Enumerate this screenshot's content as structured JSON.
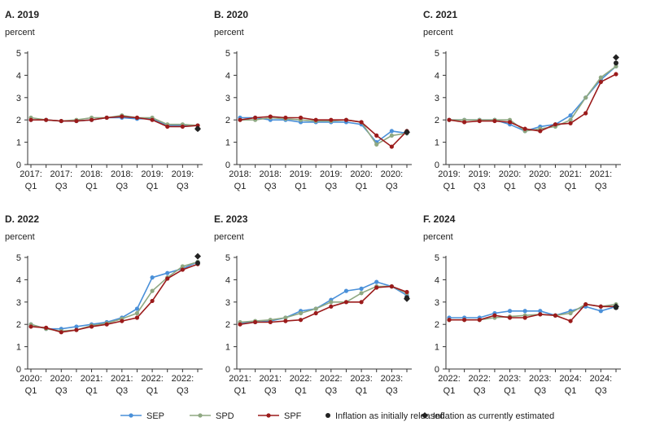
{
  "chart_data": [
    {
      "type": "line",
      "title": "A. 2019",
      "ylabel": "percent",
      "ylim": [
        0,
        5
      ],
      "yticks": [
        "0",
        "1",
        "2",
        "3",
        "4",
        "5"
      ],
      "xtick_labels": [
        [
          "2017:",
          "Q1"
        ],
        [
          "2017:",
          "Q3"
        ],
        [
          "2018:",
          "Q1"
        ],
        [
          "2018:",
          "Q3"
        ],
        [
          "2019:",
          "Q1"
        ],
        [
          "2019:",
          "Q3"
        ]
      ],
      "x_count": 12,
      "series": [
        {
          "name": "SEP",
          "values": [
            2.0,
            2.0,
            1.95,
            1.95,
            2.0,
            2.1,
            2.1,
            2.05,
            2.05,
            1.75,
            1.75,
            1.75
          ]
        },
        {
          "name": "SPD",
          "values": [
            2.1,
            2.0,
            1.95,
            2.0,
            2.1,
            2.1,
            2.2,
            2.1,
            2.1,
            1.8,
            1.8,
            1.75
          ]
        },
        {
          "name": "SPF",
          "values": [
            2.0,
            2.0,
            1.95,
            1.95,
            2.0,
            2.1,
            2.15,
            2.1,
            2.0,
            1.7,
            1.7,
            1.75
          ]
        }
      ],
      "initially_released": 1.6,
      "currently_estimated": 1.6
    },
    {
      "type": "line",
      "title": "B. 2020",
      "ylabel": "percent",
      "ylim": [
        0,
        5
      ],
      "yticks": [
        "0",
        "1",
        "2",
        "3",
        "4",
        "5"
      ],
      "xtick_labels": [
        [
          "2018:",
          "Q1"
        ],
        [
          "2018:",
          "Q3"
        ],
        [
          "2019:",
          "Q1"
        ],
        [
          "2019:",
          "Q3"
        ],
        [
          "2020:",
          "Q1"
        ],
        [
          "2020:",
          "Q3"
        ]
      ],
      "x_count": 12,
      "series": [
        {
          "name": "SEP",
          "values": [
            2.1,
            2.1,
            2.0,
            2.0,
            1.9,
            1.9,
            1.9,
            1.9,
            1.8,
            1.0,
            1.5,
            1.4
          ]
        },
        {
          "name": "SPD",
          "values": [
            2.0,
            2.0,
            2.1,
            2.05,
            2.0,
            1.95,
            1.95,
            2.0,
            1.9,
            0.9,
            1.3,
            1.4
          ]
        },
        {
          "name": "SPF",
          "values": [
            2.0,
            2.1,
            2.15,
            2.1,
            2.1,
            2.0,
            2.0,
            2.0,
            1.9,
            1.3,
            0.8,
            1.5
          ]
        }
      ],
      "initially_released": 1.45,
      "currently_estimated": 1.45
    },
    {
      "type": "line",
      "title": "C. 2021",
      "ylabel": "percent",
      "ylim": [
        0,
        5
      ],
      "yticks": [
        "0",
        "1",
        "2",
        "3",
        "4",
        "5"
      ],
      "xtick_labels": [
        [
          "2019:",
          "Q1"
        ],
        [
          "2019:",
          "Q3"
        ],
        [
          "2020:",
          "Q1"
        ],
        [
          "2020:",
          "Q3"
        ],
        [
          "2021:",
          "Q1"
        ],
        [
          "2021:",
          "Q3"
        ]
      ],
      "x_count": 12,
      "series": [
        {
          "name": "SEP",
          "values": [
            2.0,
            2.0,
            2.0,
            2.0,
            1.8,
            1.5,
            1.7,
            1.8,
            2.2,
            3.0,
            3.8,
            4.4
          ]
        },
        {
          "name": "SPD",
          "values": [
            2.0,
            2.0,
            2.0,
            2.0,
            2.0,
            1.5,
            1.6,
            1.7,
            2.0,
            3.0,
            3.9,
            4.4
          ]
        },
        {
          "name": "SPF",
          "values": [
            2.0,
            1.9,
            1.95,
            1.95,
            1.9,
            1.6,
            1.5,
            1.8,
            1.85,
            2.3,
            3.7,
            4.05
          ]
        }
      ],
      "initially_released": 4.55,
      "currently_estimated": 4.8
    },
    {
      "type": "line",
      "title": "D. 2022",
      "ylabel": "percent",
      "ylim": [
        0,
        5
      ],
      "yticks": [
        "0",
        "1",
        "2",
        "3",
        "4",
        "5"
      ],
      "xtick_labels": [
        [
          "2020:",
          "Q1"
        ],
        [
          "2020:",
          "Q3"
        ],
        [
          "2021:",
          "Q1"
        ],
        [
          "2021:",
          "Q3"
        ],
        [
          "2022:",
          "Q1"
        ],
        [
          "2022:",
          "Q3"
        ]
      ],
      "x_count": 12,
      "series": [
        {
          "name": "SEP",
          "values": [
            2.0,
            1.8,
            1.8,
            1.9,
            2.0,
            2.1,
            2.3,
            2.7,
            4.1,
            4.3,
            4.5,
            4.8
          ]
        },
        {
          "name": "SPD",
          "values": [
            2.0,
            1.8,
            1.7,
            1.75,
            1.95,
            2.05,
            2.25,
            2.5,
            3.5,
            4.1,
            4.6,
            4.8
          ]
        },
        {
          "name": "SPF",
          "values": [
            1.9,
            1.85,
            1.65,
            1.75,
            1.9,
            2.0,
            2.15,
            2.3,
            3.05,
            4.05,
            4.45,
            4.7
          ]
        }
      ],
      "initially_released": 4.75,
      "currently_estimated": 5.05
    },
    {
      "type": "line",
      "title": "E. 2023",
      "ylabel": "percent",
      "ylim": [
        0,
        5
      ],
      "yticks": [
        "0",
        "1",
        "2",
        "3",
        "4",
        "5"
      ],
      "xtick_labels": [
        [
          "2021:",
          "Q1"
        ],
        [
          "2021:",
          "Q3"
        ],
        [
          "2022:",
          "Q1"
        ],
        [
          "2022:",
          "Q3"
        ],
        [
          "2023:",
          "Q1"
        ],
        [
          "2023:",
          "Q3"
        ]
      ],
      "x_count": 12,
      "series": [
        {
          "name": "SEP",
          "values": [
            2.05,
            2.1,
            2.15,
            2.3,
            2.6,
            2.7,
            3.1,
            3.5,
            3.6,
            3.9,
            3.7,
            3.3
          ]
        },
        {
          "name": "SPD",
          "values": [
            2.1,
            2.15,
            2.2,
            2.3,
            2.5,
            2.7,
            3.0,
            3.0,
            3.4,
            3.7,
            3.7,
            3.4
          ]
        },
        {
          "name": "SPF",
          "values": [
            2.0,
            2.1,
            2.1,
            2.15,
            2.2,
            2.5,
            2.8,
            3.0,
            3.0,
            3.65,
            3.7,
            3.45
          ]
        }
      ],
      "initially_released": 3.2,
      "currently_estimated": 3.15
    },
    {
      "type": "line",
      "title": "F. 2024",
      "ylabel": "percent",
      "ylim": [
        0,
        5
      ],
      "yticks": [
        "0",
        "1",
        "2",
        "3",
        "4",
        "5"
      ],
      "xtick_labels": [
        [
          "2022:",
          "Q1"
        ],
        [
          "2022:",
          "Q3"
        ],
        [
          "2023:",
          "Q1"
        ],
        [
          "2023:",
          "Q3"
        ],
        [
          "2024:",
          "Q1"
        ],
        [
          "2024:",
          "Q3"
        ]
      ],
      "x_count": 12,
      "series": [
        {
          "name": "SEP",
          "values": [
            2.3,
            2.3,
            2.3,
            2.5,
            2.6,
            2.6,
            2.6,
            2.4,
            2.6,
            2.8,
            2.6,
            2.8
          ]
        },
        {
          "name": "SPD",
          "values": [
            2.2,
            2.2,
            2.2,
            2.3,
            2.35,
            2.4,
            2.45,
            2.4,
            2.5,
            2.9,
            2.8,
            2.9
          ]
        },
        {
          "name": "SPF",
          "values": [
            2.2,
            2.2,
            2.2,
            2.4,
            2.3,
            2.3,
            2.45,
            2.4,
            2.15,
            2.9,
            2.8,
            2.8
          ]
        }
      ],
      "initially_released": 2.75,
      "currently_estimated": 2.8
    }
  ],
  "legend": {
    "items": [
      {
        "key": "SEP",
        "label": "SEP",
        "color": "#4a90d9"
      },
      {
        "key": "SPD",
        "label": "SPD",
        "color": "#8fa882"
      },
      {
        "key": "SPF",
        "label": "SPF",
        "color": "#9b1b1b"
      },
      {
        "key": "initial",
        "label": "Inflation as initially released",
        "color": "#222222"
      },
      {
        "key": "current",
        "label": "Inflation as currently estimated",
        "color": "#222222"
      }
    ]
  },
  "colors": {
    "SEP": "#4a90d9",
    "SPD": "#8fa882",
    "SPF": "#9b1b1b",
    "marker": "#222222",
    "axis": "#333333"
  }
}
